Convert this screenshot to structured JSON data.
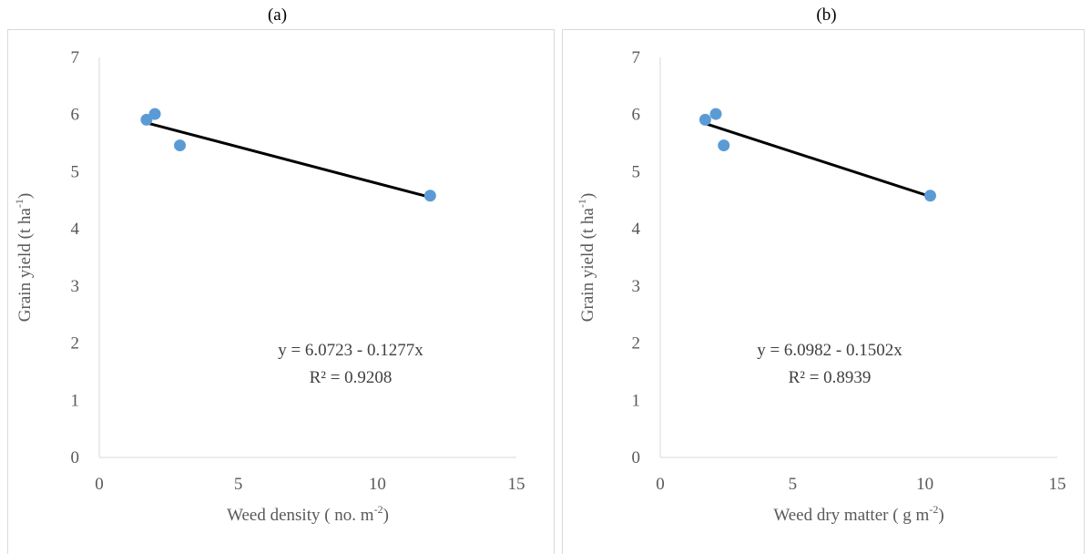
{
  "chart_data": [
    {
      "type": "scatter",
      "panel_label": "(a)",
      "xlabel": "Weed density ( no. m",
      "xlabel_sup": "-2",
      "xlabel_end": ")",
      "ylabel": "Grain yield (t ha",
      "ylabel_sup": "-1",
      "ylabel_end": ")",
      "xlim": [
        0,
        15
      ],
      "ylim": [
        0,
        7
      ],
      "xticks": [
        0,
        5,
        10,
        15
      ],
      "yticks": [
        0,
        1,
        2,
        3,
        4,
        5,
        6,
        7
      ],
      "grid": false,
      "marker_color": "#5b9bd5",
      "trendline_color": "#000000",
      "points": [
        {
          "x": 1.7,
          "y": 5.91
        },
        {
          "x": 2.0,
          "y": 6.01
        },
        {
          "x": 2.9,
          "y": 5.46
        },
        {
          "x": 11.9,
          "y": 4.58
        }
      ],
      "trendline": {
        "intercept": 6.0723,
        "slope": -0.1277,
        "x_range": [
          1.7,
          11.9
        ]
      },
      "equation": "y = 6.0723 - 0.1277x",
      "r_squared": "R² = 0.9208"
    },
    {
      "type": "scatter",
      "panel_label": "(b)",
      "xlabel": "Weed dry matter ( g m",
      "xlabel_sup": "-2",
      "xlabel_end": ")",
      "ylabel": "Grain yield (t ha",
      "ylabel_sup": "-1",
      "ylabel_end": ")",
      "xlim": [
        0,
        15
      ],
      "ylim": [
        0,
        7
      ],
      "xticks": [
        0,
        5,
        10,
        15
      ],
      "yticks": [
        0,
        1,
        2,
        3,
        4,
        5,
        6,
        7
      ],
      "grid": false,
      "marker_color": "#5b9bd5",
      "trendline_color": "#000000",
      "points": [
        {
          "x": 1.7,
          "y": 5.91
        },
        {
          "x": 2.1,
          "y": 6.01
        },
        {
          "x": 2.4,
          "y": 5.46
        },
        {
          "x": 10.2,
          "y": 4.58
        }
      ],
      "trendline": {
        "intercept": 6.0982,
        "slope": -0.1502,
        "x_range": [
          1.7,
          10.2
        ]
      },
      "equation": "y = 6.0982 - 0.1502x",
      "r_squared": "R² = 0.8939"
    }
  ]
}
